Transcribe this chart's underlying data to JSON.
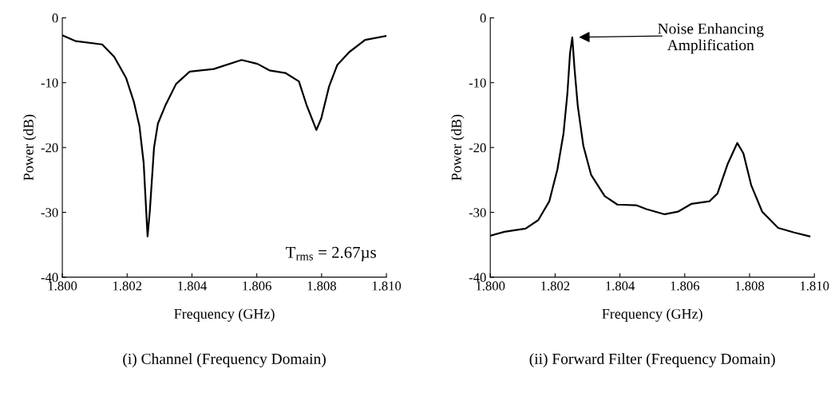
{
  "chart_data": [
    {
      "type": "line",
      "title": "(i) Channel (Frequency Domain)",
      "xlabel": "Frequency (GHz)",
      "ylabel": "Power (dB)",
      "x": [
        1.8,
        1.80042,
        1.80123,
        1.8016,
        1.80197,
        1.80221,
        1.80238,
        1.80251,
        1.80258,
        1.80263,
        1.8027,
        1.80283,
        1.80295,
        1.80319,
        1.80351,
        1.80393,
        1.80467,
        1.80553,
        1.80602,
        1.80639,
        1.80688,
        1.8073,
        1.80754,
        1.80784,
        1.80799,
        1.80823,
        1.80848,
        1.80885,
        1.80934,
        1.81
      ],
      "series": [
        {
          "color": "#000000",
          "values": [
            -2.7,
            -3.6,
            -4.1,
            -6.0,
            -9.3,
            -13,
            -16.7,
            -22.4,
            -29,
            -33.7,
            -29.8,
            -20,
            -16.3,
            -13.4,
            -10.2,
            -8.3,
            -7.9,
            -6.5,
            -7.1,
            -8.1,
            -8.5,
            -9.8,
            -13.5,
            -17.3,
            -15.5,
            -10.6,
            -7.3,
            -5.3,
            -3.4,
            -2.8
          ]
        }
      ],
      "xlim": [
        1.8,
        1.81
      ],
      "ylim": [
        -40,
        0
      ],
      "xticks": [
        {
          "value": 1.8,
          "label": "1.800"
        },
        {
          "value": 1.802,
          "label": "1.802"
        },
        {
          "value": 1.804,
          "label": "1.804"
        },
        {
          "value": 1.806,
          "label": "1.806"
        },
        {
          "value": 1.808,
          "label": "1.808"
        },
        {
          "value": 1.81,
          "label": "1.810"
        }
      ],
      "yticks": [
        0,
        -10,
        -20,
        -30,
        -40
      ],
      "annotations": [
        "T$_{rms}$ = 2.67µs"
      ],
      "grid": false,
      "marker": "none",
      "line_style": "solid"
    },
    {
      "type": "line",
      "title": "(ii) Forward Filter (Frequency Domain)",
      "xlabel": "Frequency (GHz)",
      "ylabel": "Power (dB)",
      "x": [
        1.8,
        1.80044,
        1.80109,
        1.80148,
        1.80182,
        1.80207,
        1.80226,
        1.80238,
        1.80246,
        1.80253,
        1.8026,
        1.8027,
        1.80287,
        1.80311,
        1.80353,
        1.80392,
        1.8045,
        1.80482,
        1.80538,
        1.80579,
        1.8062,
        1.80676,
        1.80701,
        1.80732,
        1.80762,
        1.80781,
        1.80805,
        1.80839,
        1.80888,
        1.80937,
        1.80985
      ],
      "series": [
        {
          "color": "#000000",
          "values": [
            -33.6,
            -33.0,
            -32.5,
            -31.2,
            -28.3,
            -23.4,
            -17.8,
            -11.6,
            -5.5,
            -3.0,
            -7.9,
            -13.6,
            -19.7,
            -24.2,
            -27.5,
            -28.8,
            -28.9,
            -29.5,
            -30.3,
            -29.9,
            -28.7,
            -28.3,
            -27.1,
            -22.6,
            -19.3,
            -20.9,
            -25.8,
            -29.9,
            -32.4,
            -33.1,
            -33.7
          ]
        }
      ],
      "xlim": [
        1.8,
        1.81
      ],
      "ylim": [
        -40,
        0
      ],
      "xticks": [
        {
          "value": 1.8,
          "label": "1.800"
        },
        {
          "value": 1.802,
          "label": "1.802"
        },
        {
          "value": 1.804,
          "label": "1.804"
        },
        {
          "value": 1.806,
          "label": "1.806"
        },
        {
          "value": 1.808,
          "label": "1.808"
        },
        {
          "value": 1.81,
          "label": "1.810"
        }
      ],
      "yticks": [
        0,
        -10,
        -20,
        -30,
        -40
      ],
      "annotations": [
        "Noise Enhancing\nAmplification"
      ],
      "grid": false,
      "marker": "none",
      "line_style": "solid"
    }
  ]
}
